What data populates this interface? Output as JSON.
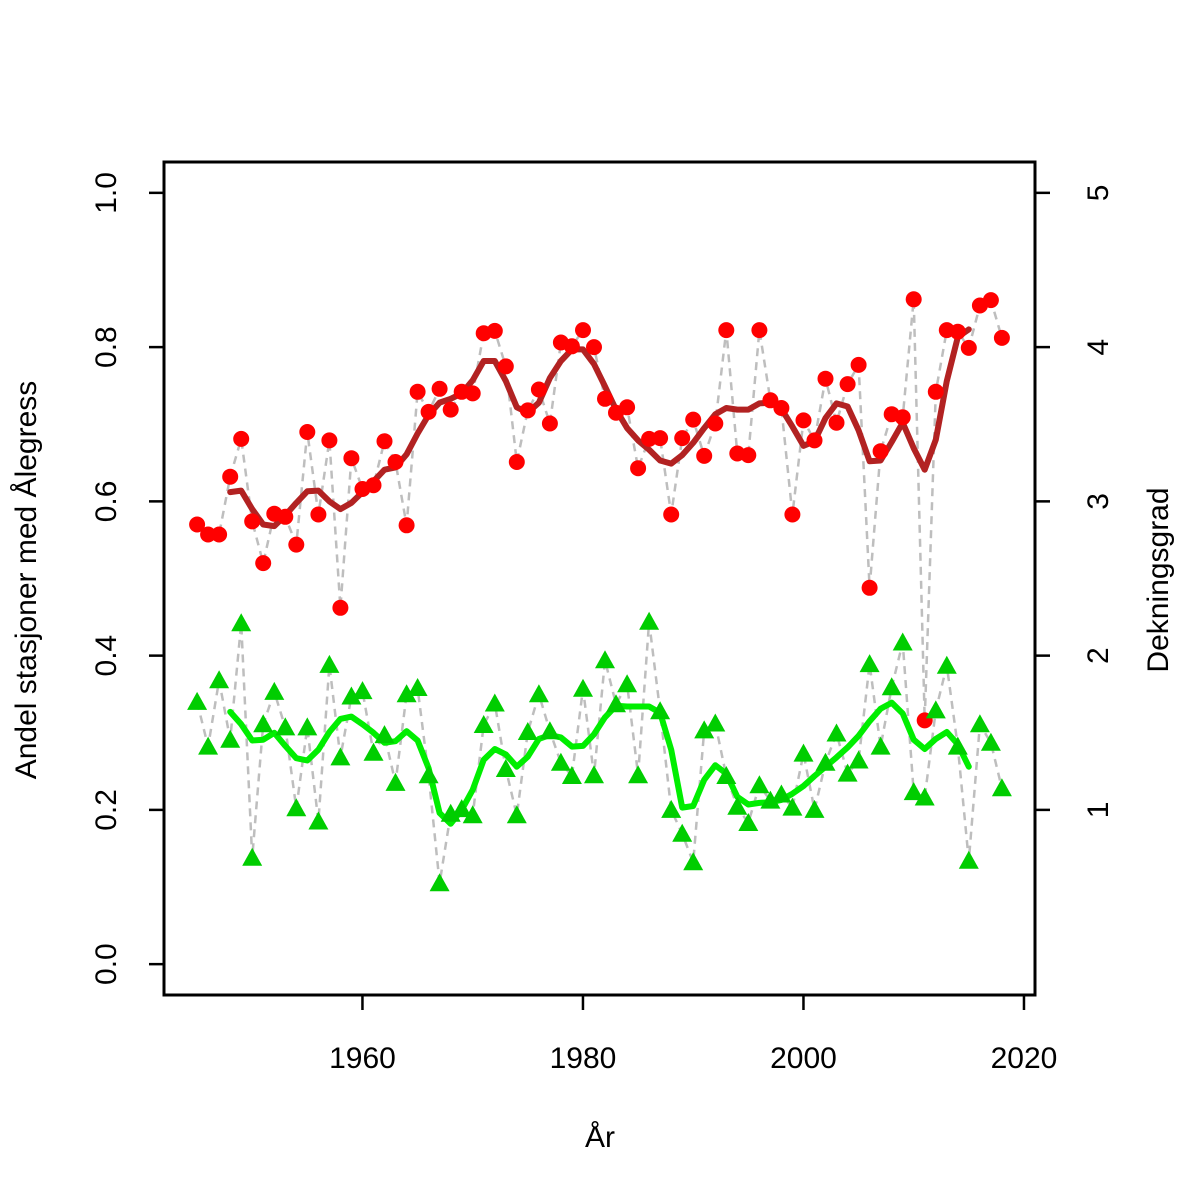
{
  "chart_data": {
    "type": "scatter",
    "xlabel": "År",
    "ylabel_left": "Andel stasjoner med Ålegress",
    "ylabel_right": "Dekningsgrad",
    "xlim": [
      1942,
      2021
    ],
    "ylim_left": [
      -0.04,
      1.04
    ],
    "ylim_right": [
      -0.2,
      5.2
    ],
    "x_ticks": [
      1960,
      1980,
      2000,
      2020
    ],
    "y_ticks_left": [
      "0.0",
      "0.2",
      "0.4",
      "0.6",
      "0.8",
      "1.0"
    ],
    "y_ticks_right": [
      "1",
      "2",
      "3",
      "4",
      "5"
    ],
    "grid": false,
    "colors": {
      "andel_points": "#ff0000",
      "andel_trend": "#b22222",
      "dekning_points": "#00cd00",
      "dekning_trend": "#00ee00",
      "connector": "#bebebe"
    },
    "series": [
      {
        "axis": "left",
        "marker": "circle",
        "x": [
          1945,
          1946,
          1947,
          1948,
          1949,
          1950,
          1951,
          1952,
          1953,
          1954,
          1955,
          1956,
          1957,
          1958,
          1959,
          1960,
          1961,
          1962,
          1963,
          1964,
          1965,
          1966,
          1967,
          1968,
          1969,
          1970,
          1971,
          1972,
          1973,
          1974,
          1975,
          1976,
          1977,
          1978,
          1979,
          1980,
          1981,
          1982,
          1983,
          1984,
          1985,
          1986,
          1987,
          1988,
          1989,
          1990,
          1991,
          1992,
          1993,
          1994,
          1995,
          1996,
          1997,
          1998,
          1999,
          2000,
          2001,
          2002,
          2003,
          2004,
          2005,
          2006,
          2007,
          2008,
          2009,
          2010,
          2011,
          2012,
          2013,
          2014,
          2015,
          2016,
          2017,
          2018
        ],
        "values": [
          0.57,
          0.557,
          0.557,
          0.632,
          0.681,
          0.574,
          0.52,
          0.584,
          0.58,
          0.544,
          0.69,
          0.583,
          0.679,
          0.462,
          0.656,
          0.616,
          0.621,
          0.678,
          0.651,
          0.569,
          0.742,
          0.716,
          0.746,
          0.719,
          0.742,
          0.74,
          0.818,
          0.821,
          0.775,
          0.651,
          0.718,
          0.745,
          0.701,
          0.806,
          0.801,
          0.822,
          0.8,
          0.733,
          0.715,
          0.722,
          0.643,
          0.681,
          0.682,
          0.583,
          0.682,
          0.706,
          0.659,
          0.701,
          0.822,
          0.662,
          0.66,
          0.822,
          0.731,
          0.721,
          0.583,
          0.705,
          0.679,
          0.759,
          0.702,
          0.752,
          0.777,
          0.488,
          0.665,
          0.713,
          0.709,
          0.862,
          0.316,
          0.742,
          0.822,
          0.82,
          0.799,
          0.854,
          0.861,
          0.812
        ]
      },
      {
        "axis": "left",
        "type": "line",
        "x": [
          1948,
          1949,
          1950,
          1951,
          1952,
          1953,
          1954,
          1955,
          1956,
          1957,
          1958,
          1959,
          1960,
          1961,
          1962,
          1963,
          1964,
          1965,
          1966,
          1967,
          1968,
          1969,
          1970,
          1971,
          1972,
          1973,
          1974,
          1975,
          1976,
          1977,
          1978,
          1979,
          1980,
          1981,
          1982,
          1983,
          1984,
          1985,
          1986,
          1987,
          1988,
          1989,
          1990,
          1991,
          1992,
          1993,
          1994,
          1995,
          1996,
          1997,
          1998,
          1999,
          2000,
          2001,
          2002,
          2003,
          2004,
          2005,
          2006,
          2007,
          2008,
          2009,
          2010,
          2011,
          2012,
          2013,
          2014,
          2015
        ],
        "values": [
          0.612,
          0.614,
          0.59,
          0.57,
          0.568,
          0.582,
          0.598,
          0.613,
          0.614,
          0.6,
          0.59,
          0.598,
          0.612,
          0.626,
          0.641,
          0.644,
          0.661,
          0.688,
          0.712,
          0.728,
          0.733,
          0.74,
          0.757,
          0.782,
          0.782,
          0.756,
          0.722,
          0.715,
          0.728,
          0.76,
          0.782,
          0.797,
          0.797,
          0.778,
          0.749,
          0.719,
          0.695,
          0.679,
          0.667,
          0.653,
          0.649,
          0.66,
          0.676,
          0.695,
          0.713,
          0.721,
          0.719,
          0.719,
          0.727,
          0.728,
          0.72,
          0.697,
          0.672,
          0.678,
          0.708,
          0.727,
          0.723,
          0.692,
          0.652,
          0.653,
          0.677,
          0.702,
          0.669,
          0.641,
          0.68,
          0.756,
          0.813,
          0.823
        ]
      },
      {
        "axis": "left",
        "marker": "triangle",
        "x": [
          1945,
          1946,
          1947,
          1948,
          1949,
          1950,
          1951,
          1952,
          1953,
          1954,
          1955,
          1956,
          1957,
          1958,
          1959,
          1960,
          1961,
          1962,
          1963,
          1964,
          1965,
          1966,
          1967,
          1968,
          1969,
          1970,
          1971,
          1972,
          1973,
          1974,
          1975,
          1976,
          1977,
          1978,
          1979,
          1980,
          1981,
          1982,
          1983,
          1984,
          1985,
          1986,
          1987,
          1988,
          1989,
          1990,
          1991,
          1992,
          1993,
          1994,
          1995,
          1996,
          1997,
          1998,
          1999,
          2000,
          2001,
          2002,
          2003,
          2004,
          2005,
          2006,
          2007,
          2008,
          2009,
          2010,
          2011,
          2012,
          2013,
          2014,
          2015,
          2016,
          2017,
          2018
        ],
        "values": [
          0.34,
          0.282,
          0.368,
          0.291,
          0.442,
          0.138,
          0.311,
          0.353,
          0.307,
          0.202,
          0.307,
          0.185,
          0.388,
          0.268,
          0.347,
          0.354,
          0.274,
          0.297,
          0.235,
          0.35,
          0.358,
          0.245,
          0.105,
          0.195,
          0.201,
          0.193,
          0.31,
          0.338,
          0.253,
          0.193,
          0.301,
          0.35,
          0.302,
          0.261,
          0.244,
          0.357,
          0.245,
          0.394,
          0.337,
          0.363,
          0.245,
          0.444,
          0.328,
          0.2,
          0.169,
          0.132,
          0.303,
          0.312,
          0.244,
          0.204,
          0.183,
          0.232,
          0.212,
          0.22,
          0.203,
          0.273,
          0.2,
          0.261,
          0.299,
          0.247,
          0.264,
          0.389,
          0.282,
          0.359,
          0.417,
          0.223,
          0.216,
          0.329,
          0.387,
          0.282,
          0.134,
          0.311,
          0.287,
          0.228
        ]
      },
      {
        "axis": "left",
        "type": "line",
        "x": [
          1948,
          1949,
          1950,
          1951,
          1952,
          1953,
          1954,
          1955,
          1956,
          1957,
          1958,
          1959,
          1960,
          1961,
          1962,
          1963,
          1964,
          1965,
          1966,
          1967,
          1968,
          1969,
          1970,
          1971,
          1972,
          1973,
          1974,
          1975,
          1976,
          1977,
          1978,
          1979,
          1980,
          1981,
          1982,
          1983,
          1984,
          1985,
          1986,
          1987,
          1988,
          1989,
          1990,
          1991,
          1992,
          1993,
          1994,
          1995,
          1996,
          1997,
          1998,
          1999,
          2000,
          2001,
          2002,
          2003,
          2004,
          2005,
          2006,
          2007,
          2008,
          2009,
          2010,
          2011,
          2012,
          2013,
          2014,
          2015
        ],
        "values": [
          0.327,
          0.311,
          0.29,
          0.291,
          0.3,
          0.283,
          0.267,
          0.264,
          0.278,
          0.301,
          0.318,
          0.321,
          0.311,
          0.3,
          0.287,
          0.289,
          0.302,
          0.29,
          0.254,
          0.196,
          0.182,
          0.2,
          0.226,
          0.265,
          0.279,
          0.272,
          0.256,
          0.269,
          0.292,
          0.297,
          0.294,
          0.282,
          0.283,
          0.298,
          0.32,
          0.335,
          0.334,
          0.334,
          0.334,
          0.326,
          0.278,
          0.203,
          0.205,
          0.239,
          0.258,
          0.247,
          0.217,
          0.207,
          0.209,
          0.21,
          0.213,
          0.221,
          0.231,
          0.244,
          0.256,
          0.268,
          0.281,
          0.296,
          0.315,
          0.331,
          0.339,
          0.325,
          0.291,
          0.279,
          0.292,
          0.301,
          0.285,
          0.256
        ]
      }
    ]
  }
}
